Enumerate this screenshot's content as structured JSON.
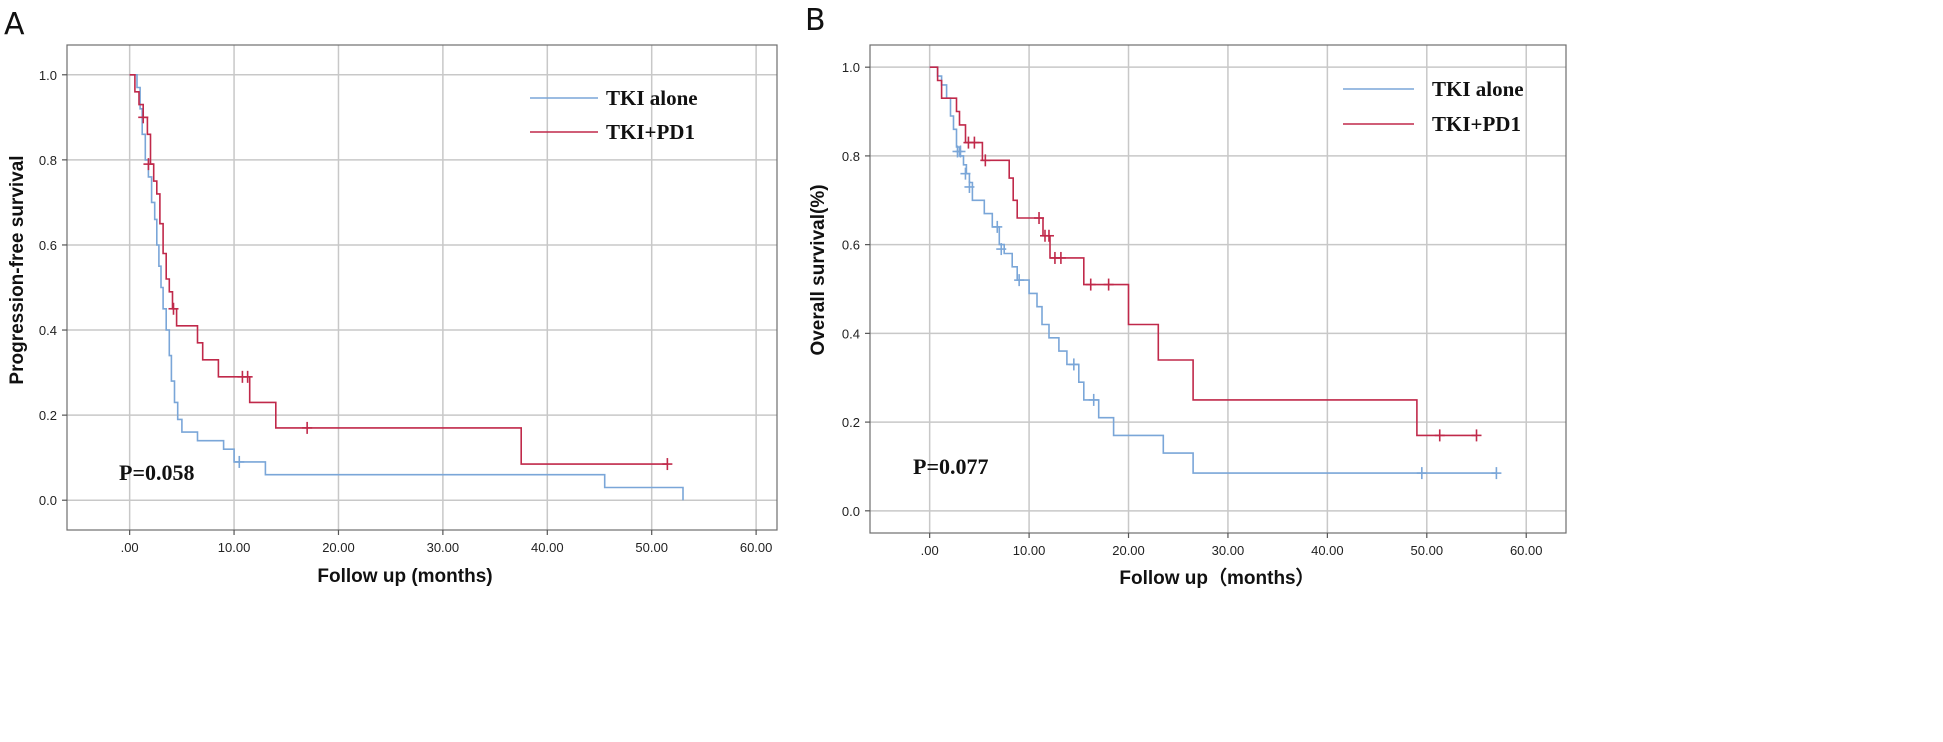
{
  "chart_data": [
    {
      "type": "line",
      "subtype": "kaplan-meier",
      "panel": "A",
      "xlabel": "Follow up (months)",
      "ylabel": "Progression-free survival",
      "xlim": [
        -6,
        62
      ],
      "ylim": [
        -0.07,
        1.07
      ],
      "xticks": [
        0,
        10,
        20,
        30,
        40,
        50,
        60
      ],
      "xtick_labels": [
        ".00",
        "10.00",
        "20.00",
        "30.00",
        "40.00",
        "50.00",
        "60.00"
      ],
      "yticks": [
        0,
        0.2,
        0.4,
        0.6,
        0.8,
        1.0
      ],
      "ytick_labels": [
        "0.0",
        "0.2",
        "0.4",
        "0.6",
        "0.8",
        "1.0"
      ],
      "grid": true,
      "legend_position": "top-right",
      "annotation": "P=0.058",
      "series": [
        {
          "name": "TKI alone",
          "color": "#7aa6d8",
          "steps": [
            [
              0,
              1.0
            ],
            [
              0.7,
              0.97
            ],
            [
              1.0,
              0.92
            ],
            [
              1.2,
              0.86
            ],
            [
              1.5,
              0.8
            ],
            [
              1.8,
              0.76
            ],
            [
              2.1,
              0.7
            ],
            [
              2.4,
              0.66
            ],
            [
              2.6,
              0.6
            ],
            [
              2.8,
              0.55
            ],
            [
              3.0,
              0.5
            ],
            [
              3.2,
              0.45
            ],
            [
              3.5,
              0.4
            ],
            [
              3.8,
              0.34
            ],
            [
              4.0,
              0.28
            ],
            [
              4.3,
              0.23
            ],
            [
              4.6,
              0.19
            ],
            [
              5.0,
              0.16
            ],
            [
              6.5,
              0.14
            ],
            [
              9.0,
              0.12
            ],
            [
              10.0,
              0.09
            ],
            [
              13.0,
              0.06
            ],
            [
              45.5,
              0.03
            ],
            [
              53.0,
              0.0
            ]
          ],
          "censored": [
            [
              10.5,
              0.09
            ]
          ]
        },
        {
          "name": "TKI+PD1",
          "color": "#c0294a",
          "steps": [
            [
              0,
              1.0
            ],
            [
              0.5,
              0.96
            ],
            [
              0.9,
              0.93
            ],
            [
              1.3,
              0.9
            ],
            [
              1.7,
              0.86
            ],
            [
              2.0,
              0.79
            ],
            [
              2.3,
              0.75
            ],
            [
              2.6,
              0.72
            ],
            [
              2.9,
              0.65
            ],
            [
              3.2,
              0.58
            ],
            [
              3.5,
              0.52
            ],
            [
              3.8,
              0.49
            ],
            [
              4.1,
              0.45
            ],
            [
              4.5,
              0.41
            ],
            [
              6.5,
              0.37
            ],
            [
              7.0,
              0.33
            ],
            [
              8.5,
              0.29
            ],
            [
              11.0,
              0.29
            ],
            [
              11.5,
              0.23
            ],
            [
              14.0,
              0.17
            ],
            [
              37.5,
              0.085
            ],
            [
              51.5,
              0.085
            ]
          ],
          "censored": [
            [
              1.3,
              0.9
            ],
            [
              1.8,
              0.79
            ],
            [
              4.2,
              0.45
            ],
            [
              10.8,
              0.29
            ],
            [
              11.3,
              0.29
            ],
            [
              17.0,
              0.17
            ],
            [
              51.5,
              0.085
            ]
          ]
        }
      ]
    },
    {
      "type": "line",
      "subtype": "kaplan-meier",
      "panel": "B",
      "xlabel": "Follow up（months）",
      "ylabel": "Overall survival(%)",
      "xlim": [
        -6,
        64
      ],
      "ylim": [
        -0.05,
        1.05
      ],
      "xticks": [
        0,
        10,
        20,
        30,
        40,
        50,
        60
      ],
      "xtick_labels": [
        ".00",
        "10.00",
        "20.00",
        "30.00",
        "40.00",
        "50.00",
        "60.00"
      ],
      "yticks": [
        0,
        0.2,
        0.4,
        0.6,
        0.8,
        1.0
      ],
      "ytick_labels": [
        "0.0",
        "0.2",
        "0.4",
        "0.6",
        "0.8",
        "1.0"
      ],
      "grid": true,
      "legend_position": "top-right",
      "annotation": "P=0.077",
      "series": [
        {
          "name": "TKI alone",
          "color": "#7aa6d8",
          "steps": [
            [
              0,
              1.0
            ],
            [
              0.8,
              0.98
            ],
            [
              1.2,
              0.96
            ],
            [
              1.7,
              0.93
            ],
            [
              2.1,
              0.89
            ],
            [
              2.4,
              0.86
            ],
            [
              2.7,
              0.82
            ],
            [
              3.0,
              0.8
            ],
            [
              3.4,
              0.78
            ],
            [
              3.7,
              0.76
            ],
            [
              4.0,
              0.74
            ],
            [
              4.3,
              0.7
            ],
            [
              5.5,
              0.67
            ],
            [
              6.3,
              0.64
            ],
            [
              7.0,
              0.6
            ],
            [
              7.5,
              0.58
            ],
            [
              8.3,
              0.55
            ],
            [
              8.8,
              0.52
            ],
            [
              10.0,
              0.49
            ],
            [
              10.8,
              0.46
            ],
            [
              11.3,
              0.42
            ],
            [
              12.0,
              0.39
            ],
            [
              13.0,
              0.36
            ],
            [
              13.8,
              0.33
            ],
            [
              15.0,
              0.29
            ],
            [
              15.5,
              0.25
            ],
            [
              17.0,
              0.21
            ],
            [
              18.5,
              0.17
            ],
            [
              23.5,
              0.13
            ],
            [
              26.5,
              0.085
            ],
            [
              57.0,
              0.085
            ]
          ],
          "censored": [
            [
              2.8,
              0.81
            ],
            [
              3.1,
              0.81
            ],
            [
              3.6,
              0.76
            ],
            [
              4.0,
              0.73
            ],
            [
              6.8,
              0.64
            ],
            [
              7.2,
              0.59
            ],
            [
              9.0,
              0.52
            ],
            [
              14.5,
              0.33
            ],
            [
              16.5,
              0.25
            ],
            [
              49.5,
              0.085
            ],
            [
              57.0,
              0.085
            ]
          ]
        },
        {
          "name": "TKI+PD1",
          "color": "#c0294a",
          "steps": [
            [
              0,
              1.0
            ],
            [
              0.8,
              0.97
            ],
            [
              1.2,
              0.93
            ],
            [
              2.7,
              0.9
            ],
            [
              3.0,
              0.87
            ],
            [
              3.6,
              0.83
            ],
            [
              5.3,
              0.79
            ],
            [
              8.0,
              0.75
            ],
            [
              8.4,
              0.7
            ],
            [
              8.8,
              0.66
            ],
            [
              11.4,
              0.62
            ],
            [
              12.1,
              0.57
            ],
            [
              15.5,
              0.51
            ],
            [
              20.0,
              0.42
            ],
            [
              23.0,
              0.34
            ],
            [
              26.5,
              0.25
            ],
            [
              49.0,
              0.17
            ],
            [
              55.0,
              0.17
            ]
          ],
          "censored": [
            [
              3.9,
              0.83
            ],
            [
              4.5,
              0.83
            ],
            [
              5.6,
              0.79
            ],
            [
              11.0,
              0.66
            ],
            [
              11.6,
              0.62
            ],
            [
              12.0,
              0.62
            ],
            [
              12.6,
              0.57
            ],
            [
              13.2,
              0.57
            ],
            [
              16.2,
              0.51
            ],
            [
              18.0,
              0.51
            ],
            [
              51.3,
              0.17
            ],
            [
              55.0,
              0.17
            ]
          ]
        }
      ]
    }
  ]
}
